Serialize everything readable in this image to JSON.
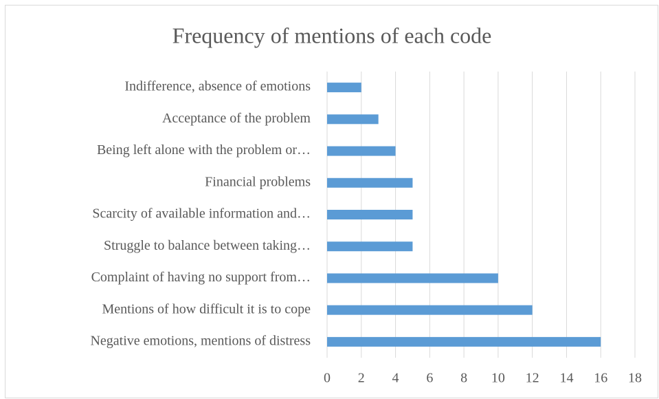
{
  "chart_data": {
    "type": "bar",
    "orientation": "horizontal",
    "title": "Frequency of mentions of each code",
    "categories": [
      "Indifference, absence of emotions",
      "Acceptance of the problem",
      "Being left alone with the problem or…",
      "Financial problems",
      "Scarcity of available information and…",
      "Struggle to balance between taking…",
      "Complaint of having no support from…",
      "Mentions of how difficult it is to cope",
      "Negative emotions, mentions of distress"
    ],
    "values": [
      2,
      3,
      4,
      5,
      5,
      5,
      10,
      12,
      16
    ],
    "color": "#5b9bd5",
    "xlim": [
      0,
      18
    ],
    "xticks": [
      0,
      2,
      4,
      6,
      8,
      10,
      12,
      14,
      16,
      18
    ],
    "grid": true
  }
}
